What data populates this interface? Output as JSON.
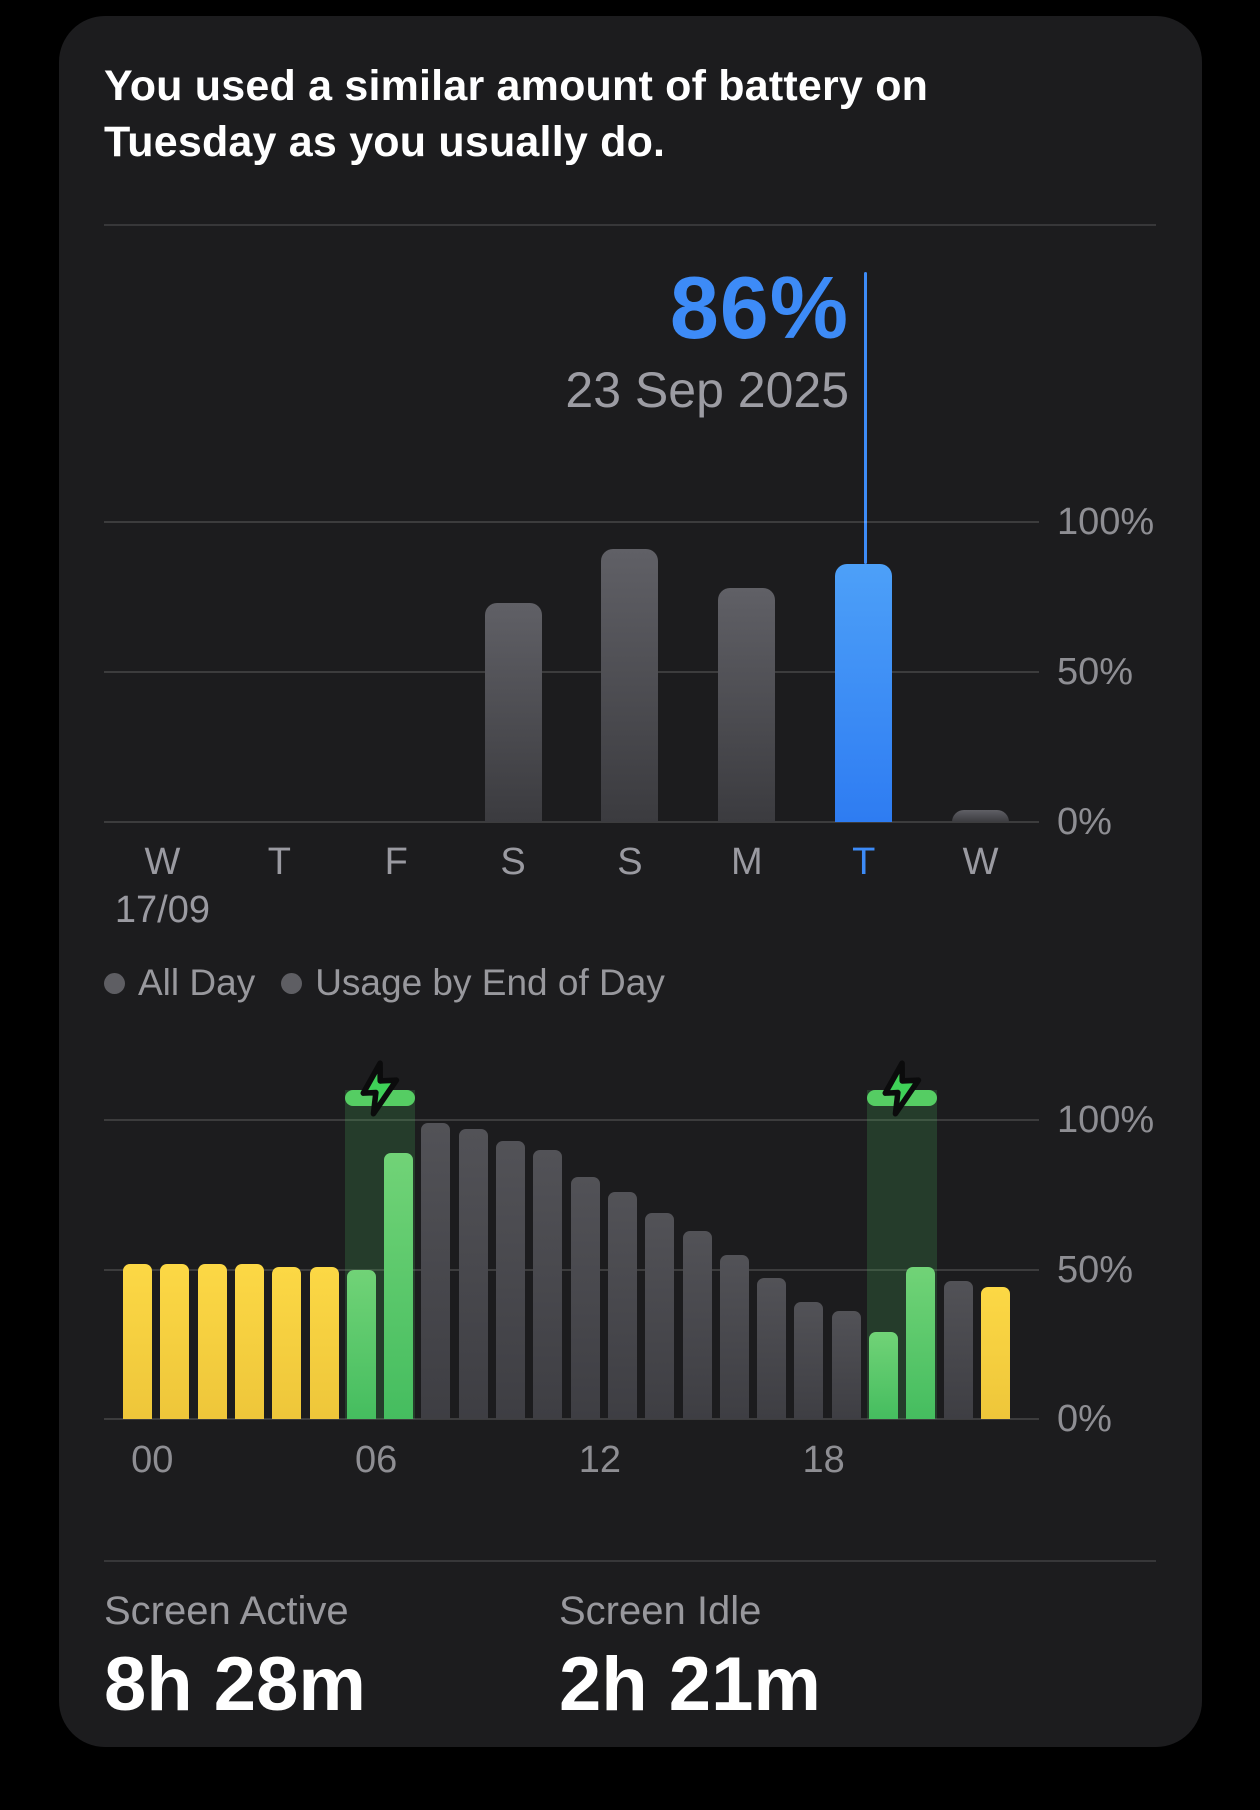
{
  "header": {
    "message": "You used a similar amount of battery on Tuesday as you usually do."
  },
  "colors": {
    "page_background": "#000000",
    "card_background": "#1c1c1e",
    "accent_blue": "#3d8bf7",
    "bar_gray_weekly": "#58585e",
    "bar_gray_daily": "#4b4b50",
    "bar_yellow_low_power": "#f6d13f",
    "bar_green_charging": "#55cc66",
    "charge_overlay_green": "rgba(74,190,94,0.20)",
    "bolt_green": "#3fd158",
    "text_primary": "#ffffff",
    "text_secondary": "#98989d",
    "axis_label_gray": "#8e8e93"
  },
  "chart_data": [
    {
      "id": "weekly-battery-usage",
      "type": "bar",
      "title": "",
      "categories": [
        "W",
        "T",
        "F",
        "S",
        "S",
        "M",
        "T",
        "W"
      ],
      "category_sub_labels": [
        "17/09",
        "",
        "",
        "",
        "",
        "",
        "",
        ""
      ],
      "values": [
        null,
        null,
        null,
        73,
        91,
        78,
        86,
        4
      ],
      "unit": "%",
      "ylim": [
        0,
        100
      ],
      "grid": "horizontal",
      "y_ticks": [
        {
          "label": "100%",
          "value": 100
        },
        {
          "label": "50%",
          "value": 50
        },
        {
          "label": "0%",
          "value": 0
        }
      ],
      "selected_index": 6,
      "selected": {
        "value_label": "86%",
        "date_label": "23 Sep 2025"
      }
    },
    {
      "id": "daily-battery-level",
      "type": "bar",
      "unit": "%",
      "ylim": [
        0,
        100
      ],
      "grid": "horizontal",
      "y_ticks": [
        {
          "label": "100%",
          "value": 100
        },
        {
          "label": "50%",
          "value": 50
        },
        {
          "label": "0%",
          "value": 0
        }
      ],
      "x_ticks": [
        {
          "label": "00",
          "hour": 0
        },
        {
          "label": "06",
          "hour": 6
        },
        {
          "label": "12",
          "hour": 12
        },
        {
          "label": "18",
          "hour": 18
        }
      ],
      "charge_overlay_extent_pct": 110,
      "charging_periods": [
        {
          "start_hour": 6,
          "end_hour": 8
        },
        {
          "start_hour": 20,
          "end_hour": 22
        }
      ],
      "bars": [
        {
          "hour": 0,
          "level": 52,
          "state": "low-power"
        },
        {
          "hour": 1,
          "level": 52,
          "state": "low-power"
        },
        {
          "hour": 2,
          "level": 52,
          "state": "low-power"
        },
        {
          "hour": 3,
          "level": 52,
          "state": "low-power"
        },
        {
          "hour": 4,
          "level": 51,
          "state": "low-power"
        },
        {
          "hour": 5,
          "level": 51,
          "state": "low-power"
        },
        {
          "hour": 6,
          "level": 50,
          "state": "charging"
        },
        {
          "hour": 7,
          "level": 89,
          "state": "charging"
        },
        {
          "hour": 8,
          "level": 99,
          "state": "normal"
        },
        {
          "hour": 9,
          "level": 97,
          "state": "normal"
        },
        {
          "hour": 10,
          "level": 93,
          "state": "normal"
        },
        {
          "hour": 11,
          "level": 90,
          "state": "normal"
        },
        {
          "hour": 12,
          "level": 81,
          "state": "normal"
        },
        {
          "hour": 13,
          "level": 76,
          "state": "normal"
        },
        {
          "hour": 14,
          "level": 69,
          "state": "normal"
        },
        {
          "hour": 15,
          "level": 63,
          "state": "normal"
        },
        {
          "hour": 16,
          "level": 55,
          "state": "normal"
        },
        {
          "hour": 17,
          "level": 47,
          "state": "normal"
        },
        {
          "hour": 18,
          "level": 39,
          "state": "normal"
        },
        {
          "hour": 19,
          "level": 36,
          "state": "normal"
        },
        {
          "hour": 20,
          "level": 29,
          "state": "charging"
        },
        {
          "hour": 21,
          "level": 51,
          "state": "charging"
        },
        {
          "hour": 22,
          "level": 46,
          "state": "normal"
        },
        {
          "hour": 23,
          "level": 44,
          "state": "low-power"
        }
      ]
    }
  ],
  "legend": {
    "items": [
      {
        "label": "All Day"
      },
      {
        "label": "Usage by End of Day"
      }
    ]
  },
  "stats": [
    {
      "label": "Screen Active",
      "value": "8h 28m"
    },
    {
      "label": "Screen Idle",
      "value": "2h 21m"
    }
  ]
}
